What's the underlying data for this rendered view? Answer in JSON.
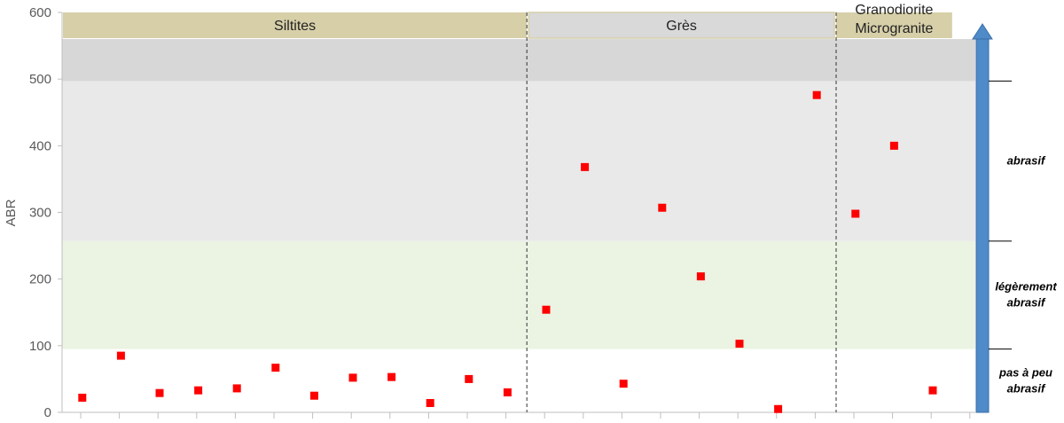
{
  "chart_data": {
    "type": "scatter",
    "title": "",
    "ylabel": "ABR",
    "xlabel": "",
    "ylim": [
      0,
      600
    ],
    "yticks": [
      0,
      100,
      200,
      300,
      400,
      500,
      600
    ],
    "grid": false,
    "series": [
      {
        "color": "#ff0000",
        "marker": "square",
        "values": [
          22,
          85,
          29,
          33,
          36,
          67,
          25,
          52,
          53,
          14,
          50,
          30,
          154,
          368,
          43,
          307,
          204,
          103,
          5,
          476,
          298,
          400,
          33
        ]
      }
    ],
    "groups": [
      {
        "label": "Siltites",
        "start": 0,
        "end": 12,
        "color": "#d6cfa8"
      },
      {
        "label": "Grès",
        "start": 12,
        "end": 20,
        "color": "#d9d9d9"
      },
      {
        "label_lines": [
          "Granodiorite",
          "Microgranite"
        ],
        "start": 20,
        "end": 23,
        "color": "#d6cfa8"
      }
    ],
    "bands": [
      {
        "from": 0,
        "to": 95,
        "color": "#ffffff"
      },
      {
        "from": 95,
        "to": 257,
        "color": "#ebf3e3"
      },
      {
        "from": 257,
        "to": 497,
        "color": "#e9e9e9"
      },
      {
        "from": 497,
        "to": 560,
        "color": "#d7d7d7"
      }
    ],
    "zones": [
      {
        "lines": [
          "pas à peu",
          "abrasif"
        ],
        "from": 0,
        "to": 95
      },
      {
        "lines": [
          "légèrement",
          "abrasif"
        ],
        "from": 95,
        "to": 257
      },
      {
        "lines": [
          "abrasif"
        ],
        "from": 257,
        "to": 497
      }
    ],
    "arrow_color": "#4f8ac9"
  }
}
